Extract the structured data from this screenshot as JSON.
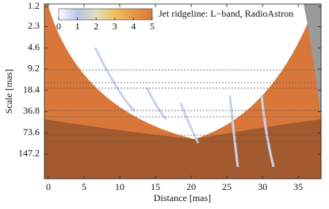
{
  "chart_data": {
    "type": "heatmap",
    "annotation": "Jet ridgeline: L−band, RadioAstron",
    "xlabel": "Distance [mas]",
    "ylabel": "Scale [mas]",
    "xlim": [
      -0.55,
      38.2
    ],
    "xticks": [
      0,
      5,
      10,
      15,
      20,
      25,
      30,
      35
    ],
    "ylim": [
      1.1,
      330
    ],
    "ylog": true,
    "yreverse": true,
    "yticks": [
      1.2,
      2.3,
      4.6,
      9.2,
      18.4,
      36.8,
      73.6,
      147.2
    ],
    "colorbar": {
      "lim": [
        0,
        5
      ],
      "ticks": [
        0,
        1,
        2,
        3,
        4,
        5
      ],
      "colors": [
        "#ffffff",
        "#b8c4e8",
        "#e0dcc0",
        "#eec060",
        "#e59a48",
        "#d9773a"
      ]
    }
  }
}
